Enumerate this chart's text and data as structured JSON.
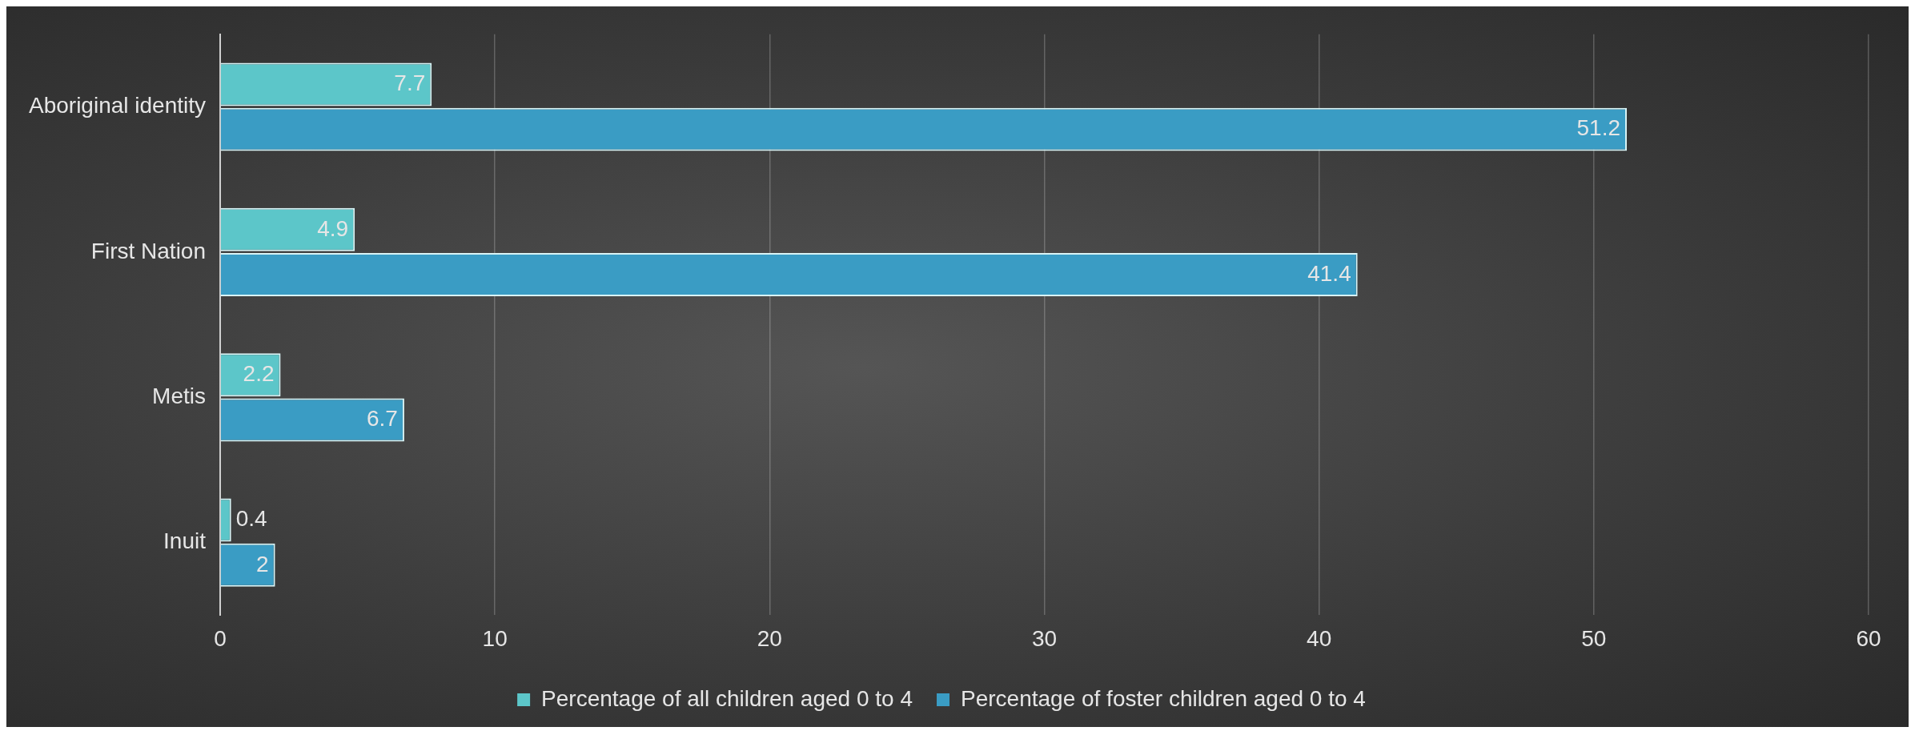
{
  "chart_data": {
    "type": "bar",
    "orientation": "horizontal",
    "categories": [
      "Aboriginal identity",
      "First Nation",
      "Metis",
      "Inuit"
    ],
    "series": [
      {
        "name": "Percentage of all children aged 0 to 4",
        "color": "#5cc6c9",
        "values": [
          7.7,
          4.9,
          2.2,
          0.4
        ]
      },
      {
        "name": "Percentage of foster children aged 0 to 4",
        "color": "#3a9cc4",
        "values": [
          51.2,
          41.4,
          6.7,
          2
        ]
      }
    ],
    "xlim": [
      0,
      60
    ],
    "xticks": [
      0,
      10,
      20,
      30,
      40,
      50,
      60
    ],
    "grid": "x",
    "legend": "bottom",
    "data_labels": true
  }
}
